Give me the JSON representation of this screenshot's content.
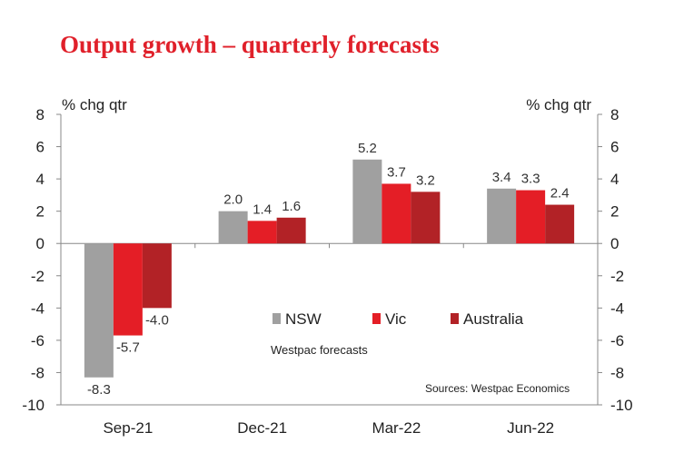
{
  "chart_data": {
    "type": "bar",
    "title": "Output growth – quarterly forecasts",
    "ylabel_left": "% chg qtr",
    "ylabel_right": "% chg qtr",
    "ylim": [
      -10,
      8
    ],
    "yticks": [
      8,
      6,
      4,
      2,
      0,
      -2,
      -4,
      -6,
      -8,
      -10
    ],
    "categories": [
      "Sep-21",
      "Dec-21",
      "Mar-22",
      "Jun-22"
    ],
    "series": [
      {
        "name": "NSW",
        "color": "#a0a0a0",
        "values": [
          -8.3,
          2.0,
          5.2,
          3.4
        ],
        "labels": [
          "-8.3",
          "2.0",
          "5.2",
          "3.4"
        ]
      },
      {
        "name": "Vic",
        "color": "#e41e26",
        "values": [
          -5.7,
          1.4,
          3.7,
          3.3
        ],
        "labels": [
          "-5.7",
          "1.4",
          "3.7",
          "3.3"
        ]
      },
      {
        "name": "Australia",
        "color": "#b22226",
        "values": [
          -4.0,
          1.6,
          3.2,
          2.4
        ],
        "labels": [
          "-4.0",
          "1.6",
          "3.2",
          "2.4"
        ]
      }
    ],
    "annotation": "Westpac forecasts",
    "source": "Sources:  Westpac Economics",
    "legend_position": "center-right"
  }
}
